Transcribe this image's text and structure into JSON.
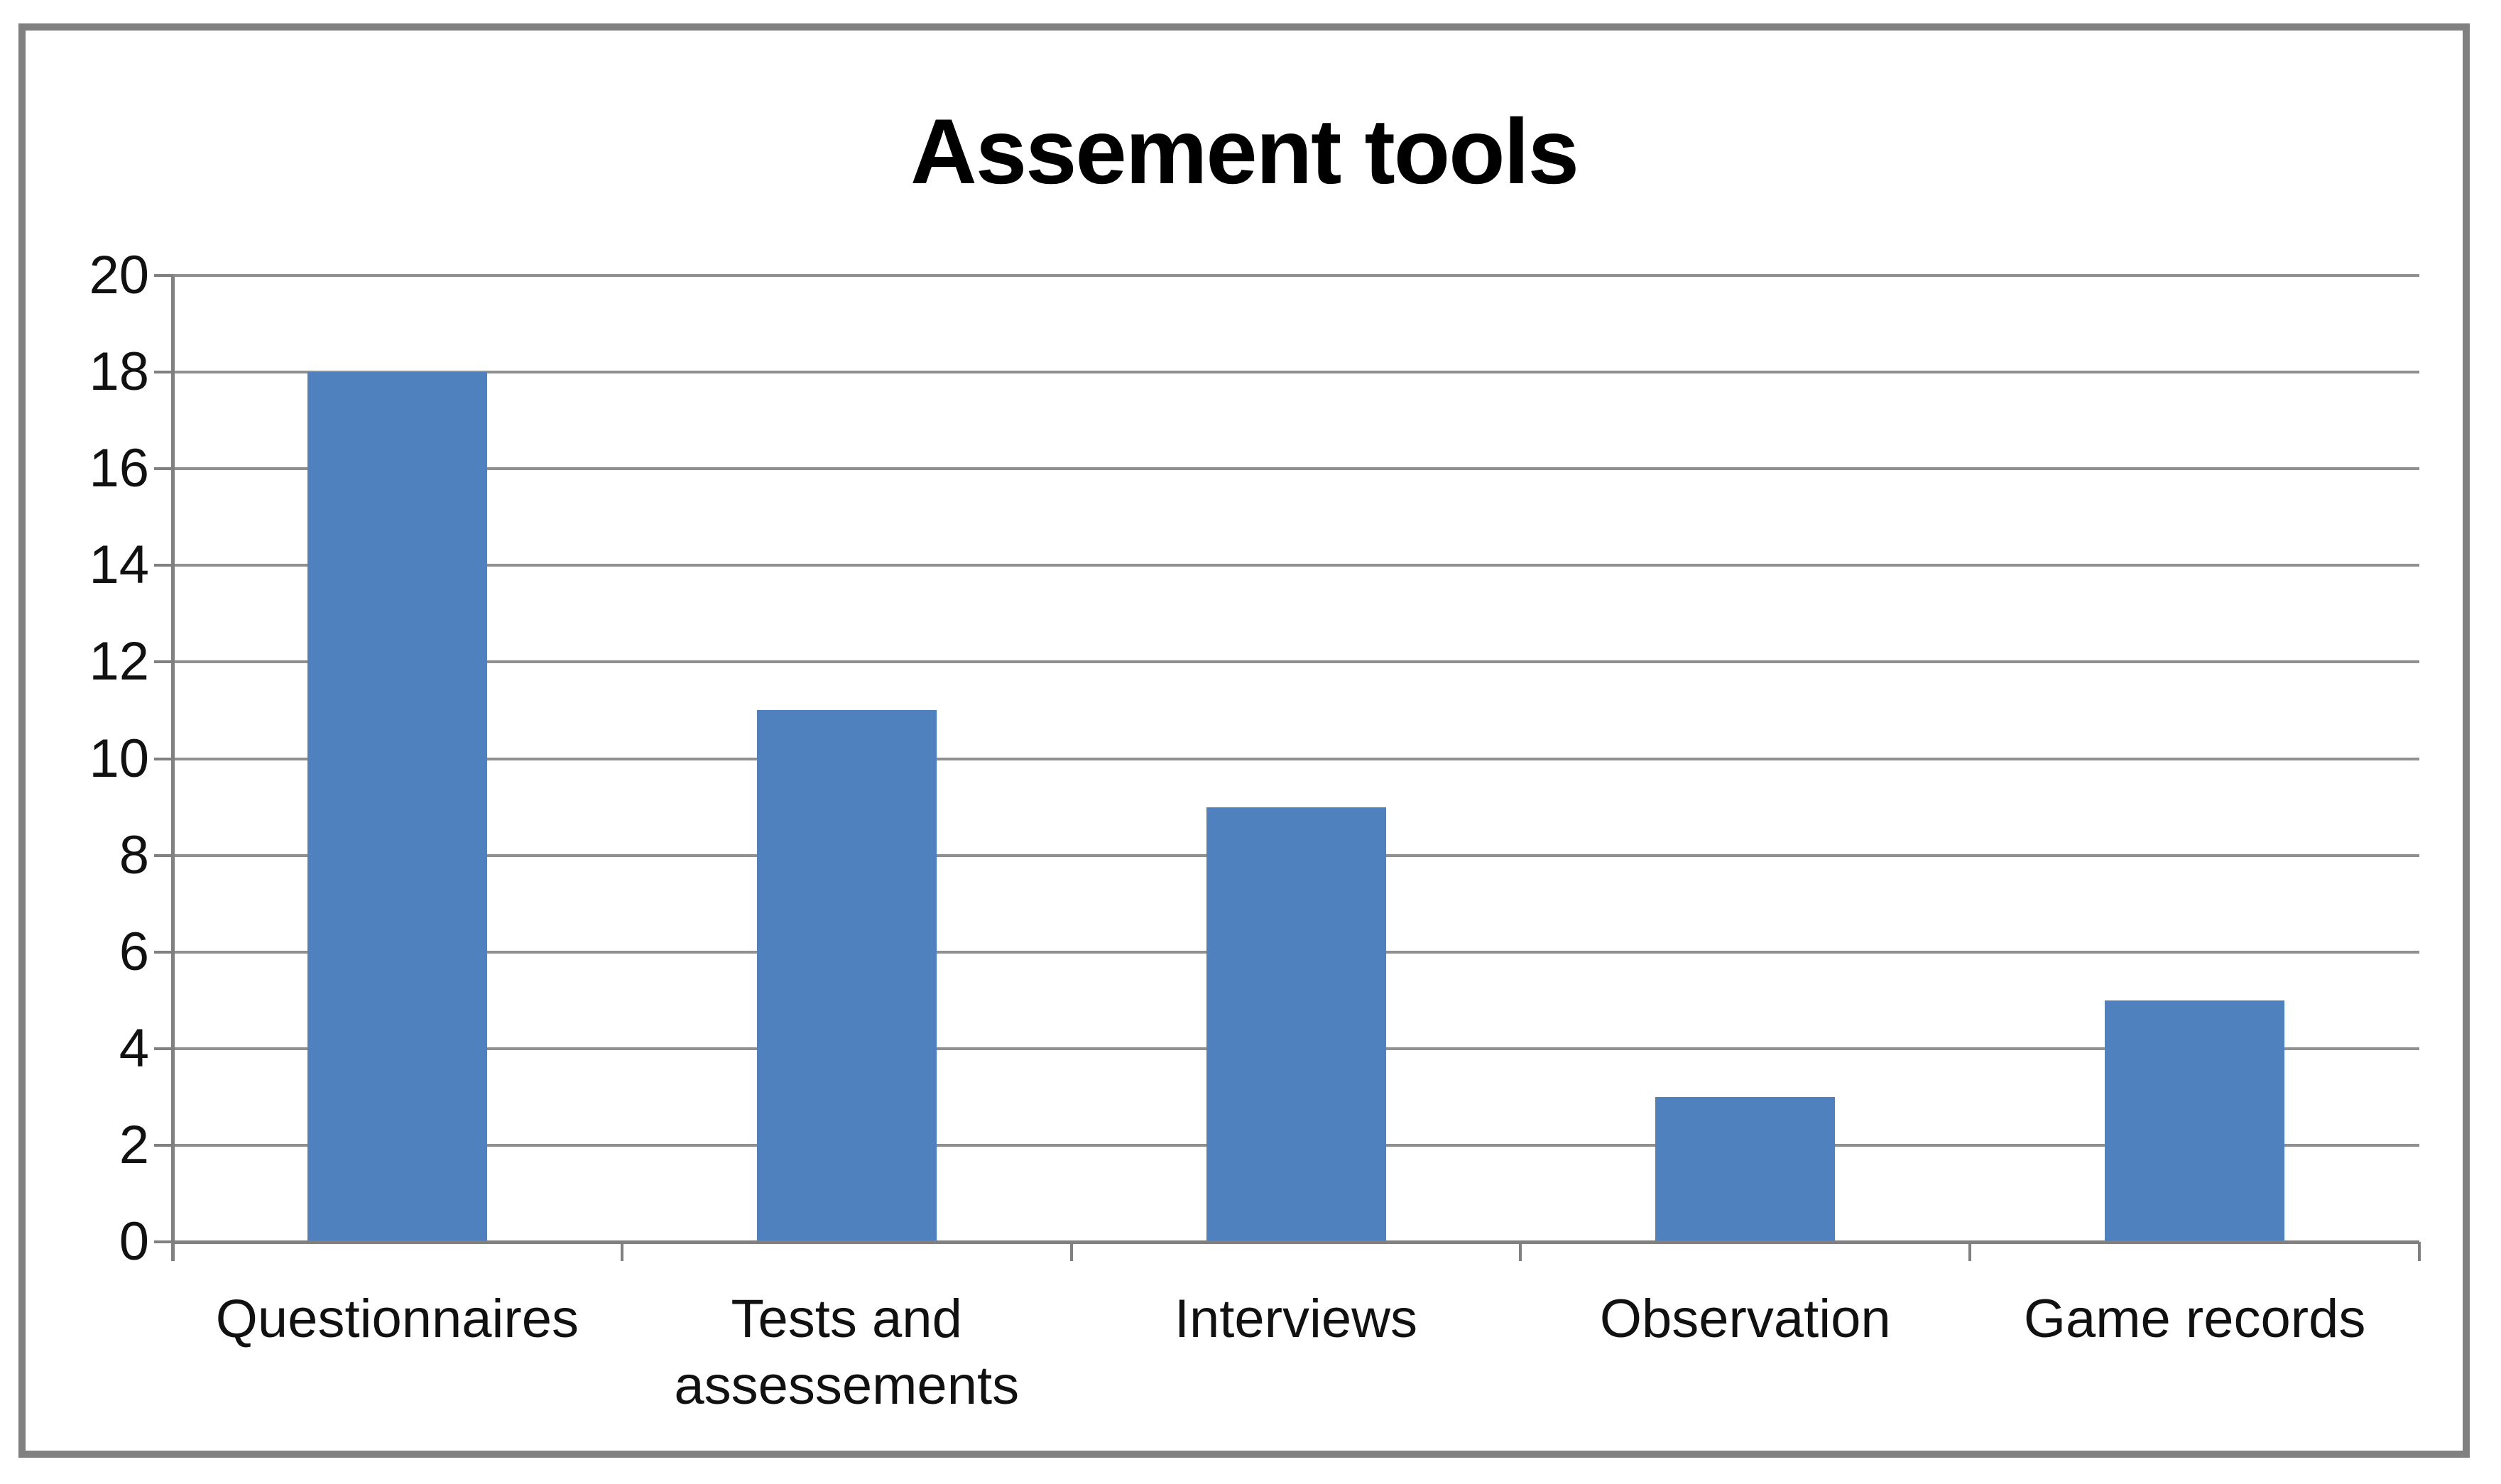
{
  "chart_data": {
    "type": "bar",
    "title": "Assement tools",
    "categories": [
      "Questionnaires",
      "Tests and assessements",
      "Interviews",
      "Observation",
      "Game records"
    ],
    "values": [
      18,
      11,
      9,
      3,
      5
    ],
    "xlabel": "",
    "ylabel": "",
    "ylim": [
      0,
      20
    ],
    "ytick_step": 2,
    "ytick_labels": [
      "0",
      "2",
      "4",
      "6",
      "8",
      "10",
      "12",
      "14",
      "16",
      "18",
      "20"
    ],
    "grid": true,
    "legend_position": "none",
    "colors": {
      "bar": "#4e81bd",
      "gridline": "#909090",
      "axis": "#808080",
      "text": "#111111",
      "title_text": "#000000",
      "frame_border": "#808080",
      "background": "#ffffff"
    }
  }
}
